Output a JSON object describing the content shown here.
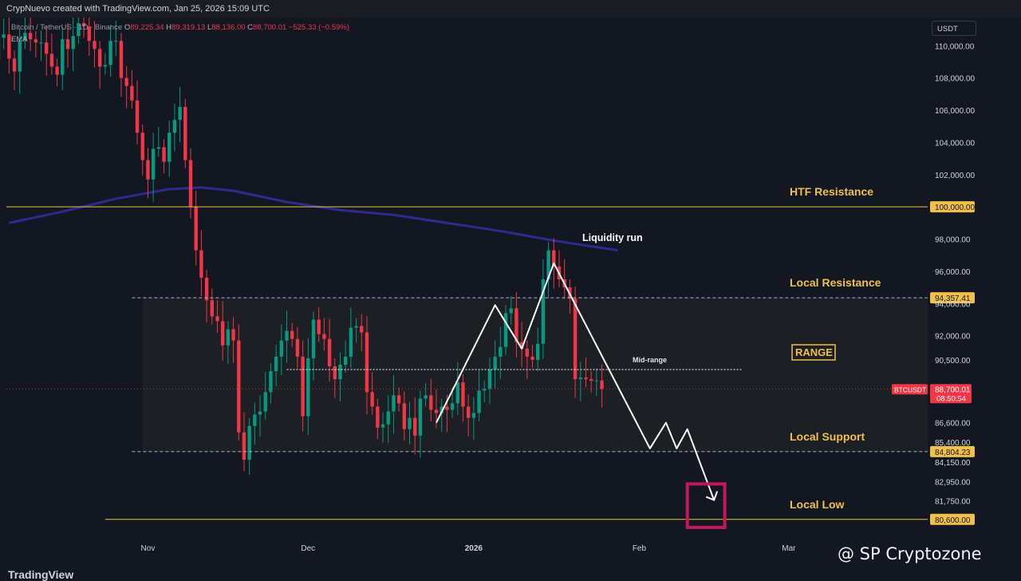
{
  "header": {
    "title": "CrypNuevo created with TradingView.com, Jan 25, 2026 15:09 UTC"
  },
  "legend": {
    "symbol": "Bitcoin / TetherUS · 1D · Binance",
    "open": "89,225.34",
    "high": "89,319.13",
    "low": "88,136.00",
    "close": "88,700.01",
    "change": "−525.33 (−0.59%)",
    "indicator": "EMA"
  },
  "currency_button": "USDT",
  "colors": {
    "up": "#089981",
    "down": "#f23645",
    "ema": "#2f2a8f",
    "level": "#f0c04a",
    "range_label": "#f0c04a",
    "target_box": "#c2185b"
  },
  "chart_data": {
    "type": "candlestick",
    "timeframe": "1D",
    "ylim": [
      79400,
      111600
    ],
    "y_ticks": [
      "110,000.00",
      "108,000.00",
      "106,000.00",
      "104,000.00",
      "102,000.00",
      "98,000.00",
      "96,000.00",
      "94,000.00",
      "92,000.00",
      "90,500.00",
      "86,600.00",
      "85,400.00",
      "84,150.00",
      "82,950.00",
      "81,750.00"
    ],
    "y_tick_values": [
      110000,
      108000,
      106000,
      104000,
      102000,
      98000,
      96000,
      94000,
      92000,
      90500,
      86600,
      85400,
      84150,
      82950,
      81750
    ],
    "x_ticks": [
      {
        "label": "Nov",
        "day": 0
      },
      {
        "label": "Dec",
        "day": 30
      },
      {
        "label": "2026",
        "day": 61
      },
      {
        "label": "Feb",
        "day": 92
      },
      {
        "label": "Mar",
        "day": 120
      }
    ],
    "x_range_days": [
      -26.5,
      146
    ],
    "last_price": {
      "label": "BTCUSDT",
      "price": "88,700.01",
      "countdown": "08:50:54",
      "value": 88700
    },
    "candles_closes": [
      108500,
      110800,
      111500,
      110500,
      109600,
      107400,
      106700,
      108200,
      110300,
      110700,
      109000,
      107700,
      109100,
      110500,
      110700,
      109200,
      108400,
      110300,
      110800,
      110400,
      110200,
      110200,
      109500,
      108700,
      108200,
      110400,
      109800,
      110600,
      111400,
      111200,
      110300,
      109800,
      108700,
      108800,
      110300,
      110300,
      108000,
      107500,
      106600,
      104600,
      102900,
      101700,
      103600,
      103700,
      102800,
      104600,
      105400,
      106200,
      102900,
      100000,
      97300,
      95600,
      94200,
      93200,
      92900,
      91400,
      92400,
      91700,
      86000,
      84300,
      86400,
      87100,
      87300,
      88500,
      89800,
      90700,
      91700,
      92300,
      91800,
      90700,
      87000,
      90600,
      93000,
      92100,
      91800,
      90100,
      89300,
      90200,
      90700,
      92500,
      92600,
      92200,
      88500,
      87600,
      86300,
      86500,
      87300,
      88300,
      87800,
      86200,
      86900,
      85800,
      88100,
      88300,
      87400,
      87200,
      87600,
      87400,
      87800,
      89100,
      87600,
      86900,
      87200,
      88600,
      88700,
      89900,
      90700,
      91300,
      93400,
      93700,
      91600,
      91200,
      90700,
      90500,
      91500,
      95500,
      97300,
      96300,
      95500,
      95000,
      94300,
      89300,
      89400,
      89300,
      89200,
      89225,
      88700
    ],
    "ema_name": "EMA",
    "ema_points": [
      {
        "day": -26,
        "value": 99000
      },
      {
        "day": -16,
        "value": 99700
      },
      {
        "day": -6,
        "value": 100500
      },
      {
        "day": 4,
        "value": 101100
      },
      {
        "day": 10,
        "value": 101200
      },
      {
        "day": 16,
        "value": 101000
      },
      {
        "day": 26,
        "value": 100300
      },
      {
        "day": 36,
        "value": 99800
      },
      {
        "day": 46,
        "value": 99500
      },
      {
        "day": 56,
        "value": 99000
      },
      {
        "day": 66,
        "value": 98500
      },
      {
        "day": 76,
        "value": 97900
      },
      {
        "day": 84,
        "value": 97500
      },
      {
        "day": 88,
        "value": 97300
      }
    ],
    "levels": [
      {
        "name": "HTF Resistance",
        "value": 100000,
        "price_label": "100,000.00",
        "style": "solid"
      },
      {
        "name": "Local Resistance",
        "value": 94357.41,
        "price_label": "94,357.41",
        "style": "dashed"
      },
      {
        "name": "Local Support",
        "value": 84804.23,
        "price_label": "84,804.23",
        "style": "dashed"
      },
      {
        "name": "Local Low",
        "value": 80600,
        "price_label": "80,600.00",
        "style": "solid"
      }
    ],
    "mid_range": {
      "label": "Mid-range",
      "value": 89900
    },
    "range_label": "RANGE",
    "annotations": {
      "liquidity_run": "Liquidity run"
    },
    "path_points": [
      {
        "day": 54,
        "value": 86600
      },
      {
        "day": 65,
        "value": 93900
      },
      {
        "day": 70,
        "value": 91200
      },
      {
        "day": 76,
        "value": 96500
      },
      {
        "day": 94,
        "value": 85000
      },
      {
        "day": 97,
        "value": 86600
      },
      {
        "day": 99,
        "value": 85000
      },
      {
        "day": 101,
        "value": 86200
      },
      {
        "day": 106,
        "value": 81800
      }
    ],
    "target_box": {
      "day_from": 101,
      "day_to": 108,
      "value_from": 80100,
      "value_to": 82800
    }
  },
  "watermark": "@ SP Cryptozone",
  "footer_logo": "TradingView"
}
